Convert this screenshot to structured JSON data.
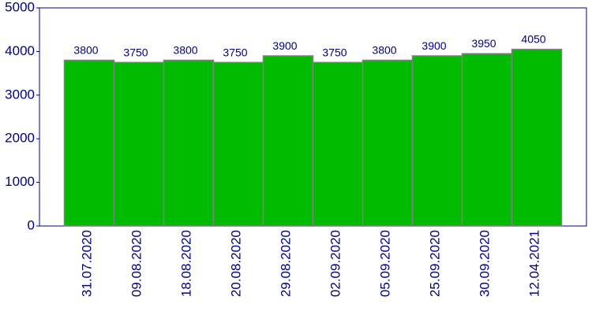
{
  "chart_data": {
    "type": "bar",
    "categories": [
      "31.07.2020",
      "09.08.2020",
      "18.08.2020",
      "20.08.2020",
      "29.08.2020",
      "02.09.2020",
      "05.09.2020",
      "25.09.2020",
      "30.09.2020",
      "12.04.2021"
    ],
    "values": [
      3800,
      3750,
      3800,
      3750,
      3900,
      3750,
      3800,
      3900,
      3950,
      4050
    ],
    "color": "#00bb00",
    "ylim": [
      0,
      5000
    ],
    "yticks": [
      0,
      1000,
      2000,
      3000,
      4000,
      5000
    ],
    "grid": false
  }
}
